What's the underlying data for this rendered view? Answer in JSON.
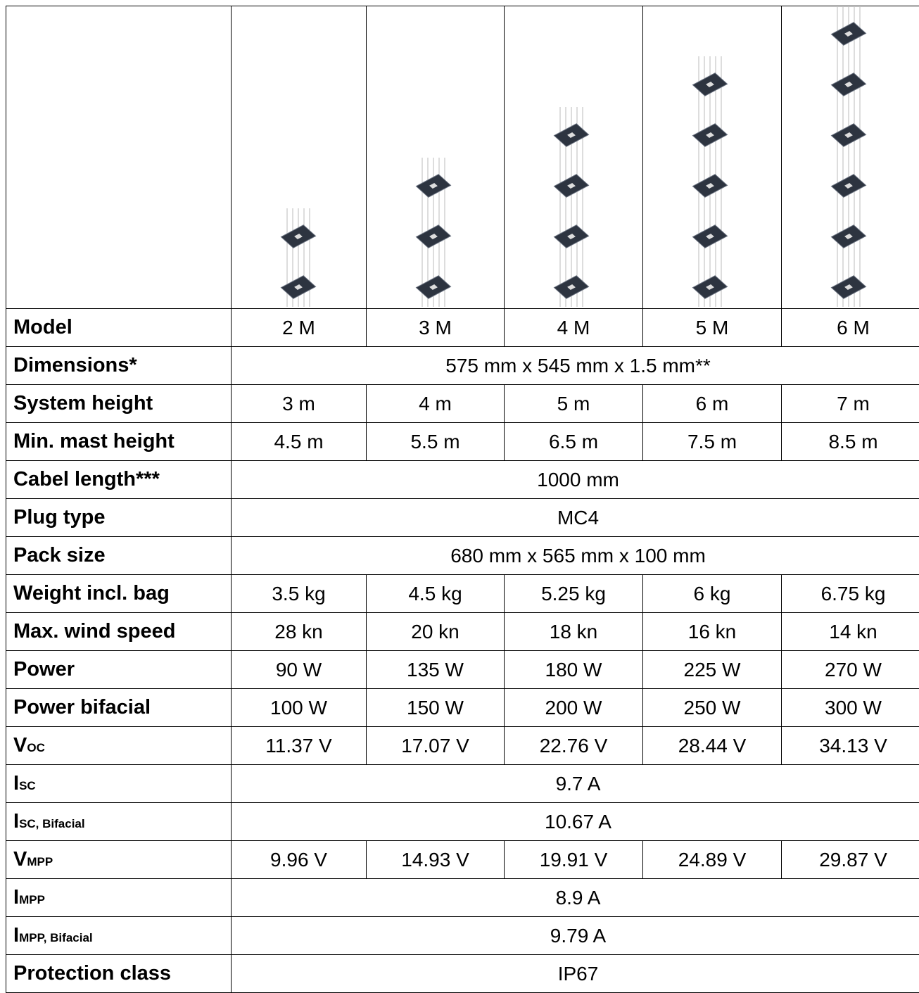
{
  "table": {
    "rows": [
      {
        "label": "Model",
        "cells": [
          "2 M",
          "3 M",
          "4 M",
          "5 M",
          "6 M"
        ]
      },
      {
        "label": "Dimensions*",
        "cells": [
          "575 mm x 545 mm x 1.5 mm**"
        ]
      },
      {
        "label": "System height",
        "cells": [
          "3 m",
          "4 m",
          "5 m",
          "6 m",
          "7 m"
        ]
      },
      {
        "label": "Min. mast height",
        "cells": [
          "4.5 m",
          "5.5 m",
          "6.5 m",
          "7.5 m",
          "8.5 m"
        ]
      },
      {
        "label": "Cabel length***",
        "cells": [
          "1000 mm"
        ]
      },
      {
        "label": "Plug type",
        "cells": [
          "MC4"
        ]
      },
      {
        "label": "Pack size",
        "cells": [
          "680 mm x 565 mm x 100 mm"
        ]
      },
      {
        "label": "Weight incl. bag",
        "cells": [
          "3.5 kg",
          "4.5 kg",
          "5.25 kg",
          "6 kg",
          "6.75 kg"
        ]
      },
      {
        "label": "Max. wind speed",
        "cells": [
          "28 kn",
          "20 kn",
          "18 kn",
          "16 kn",
          "14 kn"
        ]
      },
      {
        "label": "Power",
        "cells": [
          "90 W",
          "135 W",
          "180 W",
          "225 W",
          "270 W"
        ]
      },
      {
        "label": "Power bifacial",
        "cells": [
          "100 W",
          "150 W",
          "200 W",
          "250 W",
          "300 W"
        ]
      },
      {
        "label": {
          "main": "V",
          "sub": "OC"
        },
        "cells": [
          "11.37 V",
          "17.07 V",
          "22.76 V",
          "28.44 V",
          "34.13 V"
        ]
      },
      {
        "label": {
          "main": "I",
          "sub": "SC"
        },
        "cells": [
          "9.7 A"
        ]
      },
      {
        "label": {
          "main": "I",
          "sub": "SC, Bifacial"
        },
        "cells": [
          "10.67 A"
        ]
      },
      {
        "label": {
          "main": "V",
          "sub": "MPP"
        },
        "cells": [
          "9.96 V",
          "14.93 V",
          "19.91 V",
          "24.89 V",
          "29.87 V"
        ]
      },
      {
        "label": {
          "main": "I",
          "sub": "MPP"
        },
        "cells": [
          "8.9 A"
        ]
      },
      {
        "label": {
          "main": "I",
          "sub": "MPP, Bifacial"
        },
        "cells": [
          "9.79 A"
        ]
      },
      {
        "label": "Protection class",
        "cells": [
          "IP67"
        ]
      }
    ]
  }
}
